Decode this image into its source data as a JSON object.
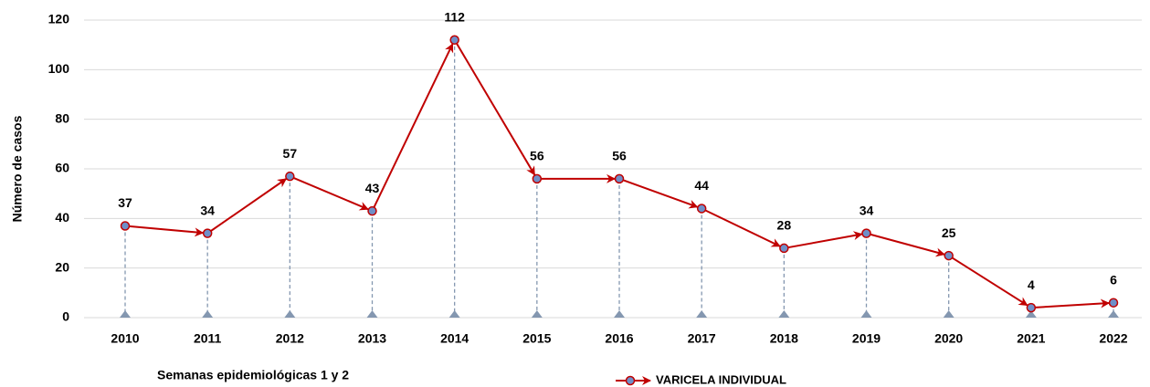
{
  "chart_data": {
    "type": "line",
    "x_label": "Semanas epidemiológicas 1 y 2",
    "y_label": "Número de casos",
    "categories": [
      "2010",
      "2011",
      "2012",
      "2013",
      "2014",
      "2015",
      "2016",
      "2017",
      "2018",
      "2019",
      "2020",
      "2021",
      "2022"
    ],
    "series": [
      {
        "name": "VARICELA INDIVIDUAL",
        "color": "#c00000",
        "marker_color": "#6f8fc8",
        "values": [
          37,
          34,
          57,
          43,
          112,
          56,
          56,
          44,
          28,
          34,
          25,
          4,
          6
        ]
      }
    ],
    "ylim": [
      0,
      120
    ],
    "yticks": [
      0,
      20,
      40,
      60,
      80,
      100,
      120
    ],
    "grid": true,
    "drop_lines": true,
    "legend": "bottom"
  }
}
